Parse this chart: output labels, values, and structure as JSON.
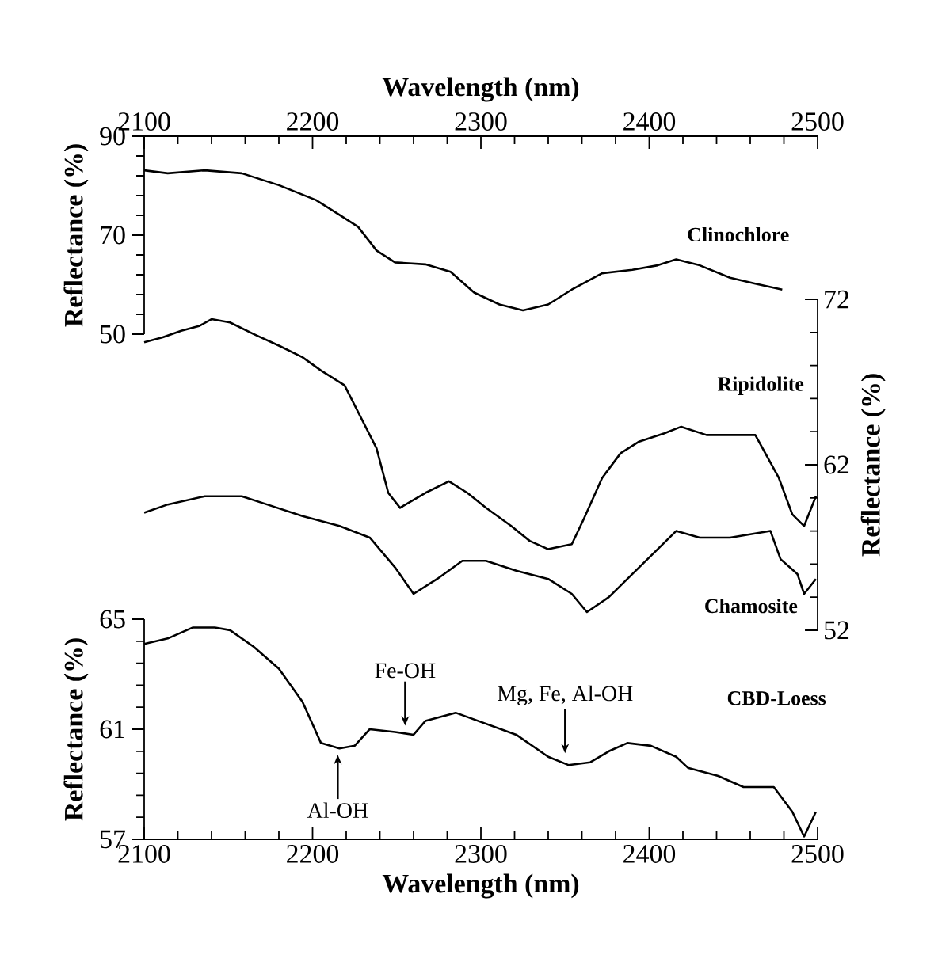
{
  "chart_data": [
    {
      "type": "line",
      "xlabel": "Wavelength (nm)",
      "xlim": [
        2100,
        2500
      ],
      "xticks": [
        2100,
        2200,
        2300,
        2400,
        2500
      ],
      "ylabel": "Reflectance (%)",
      "ylim": [
        50,
        90
      ],
      "yticks": [
        50,
        70,
        90
      ],
      "series": [
        {
          "name": "Clinochlore",
          "color": "#000000",
          "x": [
            2100,
            2114,
            2136,
            2158,
            2180,
            2202,
            2216,
            2227,
            2238,
            2249,
            2267,
            2282,
            2296,
            2311,
            2325,
            2340,
            2354,
            2372,
            2390,
            2405,
            2416,
            2430,
            2448,
            2463,
            2479
          ],
          "values": [
            83.1,
            82.5,
            83.1,
            82.5,
            80.1,
            77.1,
            74.1,
            71.7,
            66.9,
            64.5,
            64.1,
            62.6,
            58.4,
            56.0,
            54.8,
            56.0,
            59.0,
            62.3,
            63.0,
            63.9,
            65.1,
            63.9,
            61.4,
            60.2,
            59.0
          ]
        }
      ]
    },
    {
      "type": "line",
      "xlim": [
        2100,
        2500
      ],
      "tick_labels": "y",
      "y2label": "Reflectance (%)",
      "y2lim": [
        52,
        72
      ],
      "y2ticks": [
        52,
        62,
        72
      ],
      "series": [
        {
          "name": "Ripidolite",
          "color": "#000000",
          "axis": "y2",
          "x": [
            2100,
            2111,
            2122,
            2133,
            2140,
            2151,
            2165,
            2180,
            2194,
            2205,
            2219,
            2227,
            2238,
            2245,
            2252,
            2267,
            2281,
            2292,
            2303,
            2318,
            2329,
            2340,
            2354,
            2361,
            2372,
            2383,
            2394,
            2409,
            2419,
            2434,
            2448,
            2463,
            2470,
            2477,
            2485,
            2492,
            2499
          ],
          "values": [
            69.4,
            69.7,
            70.1,
            70.4,
            70.8,
            70.6,
            69.9,
            69.2,
            68.5,
            67.7,
            66.8,
            65.2,
            63.0,
            60.3,
            59.4,
            60.3,
            61.0,
            60.3,
            59.4,
            58.3,
            57.4,
            56.9,
            57.2,
            58.7,
            61.2,
            62.7,
            63.4,
            63.9,
            64.3,
            63.8,
            63.8,
            63.8,
            62.5,
            61.2,
            59.0,
            58.3,
            60.1
          ]
        },
        {
          "name": "Chamosite",
          "color": "#000000",
          "axis": "y2",
          "x": [
            2100,
            2114,
            2136,
            2158,
            2173,
            2194,
            2216,
            2234,
            2249,
            2260,
            2274,
            2289,
            2303,
            2321,
            2340,
            2354,
            2363,
            2376,
            2390,
            2405,
            2416,
            2430,
            2448,
            2472,
            2478,
            2488,
            2492,
            2499
          ],
          "values": [
            59.1,
            59.6,
            60.1,
            60.1,
            59.6,
            58.9,
            58.3,
            57.6,
            55.8,
            54.2,
            55.1,
            56.2,
            56.2,
            55.6,
            55.1,
            54.2,
            53.1,
            54.0,
            55.4,
            56.9,
            58.0,
            57.6,
            57.6,
            58.0,
            56.3,
            55.4,
            54.2,
            55.1
          ]
        }
      ]
    },
    {
      "type": "line",
      "xlabel": "Wavelength (nm)",
      "xlim": [
        2100,
        2500
      ],
      "xticks": [
        2100,
        2200,
        2300,
        2400,
        2500
      ],
      "ylabel": "Reflectance (%)",
      "ylim": [
        57,
        65
      ],
      "yticks": [
        57,
        61,
        65
      ],
      "annotations": [
        {
          "text": "Al-OH",
          "x": 2215,
          "y": 60.3
        },
        {
          "text": "Fe-OH",
          "x": 2255,
          "y": 60.9
        },
        {
          "text": "Mg, Fe, Al-OH",
          "x": 2350,
          "y": 59.9
        }
      ],
      "series": [
        {
          "name": "CBD-Loess",
          "color": "#000000",
          "x": [
            2100,
            2114,
            2129,
            2142,
            2151,
            2165,
            2180,
            2194,
            2205,
            2216,
            2225,
            2234,
            2249,
            2260,
            2267,
            2285,
            2303,
            2321,
            2340,
            2352,
            2365,
            2376,
            2387,
            2401,
            2416,
            2423,
            2441,
            2456,
            2474,
            2485,
            2492,
            2499
          ],
          "values": [
            64.1,
            64.3,
            64.7,
            64.7,
            64.6,
            64.0,
            63.2,
            62.0,
            60.5,
            60.3,
            60.4,
            61.0,
            60.9,
            60.8,
            61.3,
            61.6,
            61.2,
            60.8,
            60.0,
            59.7,
            59.8,
            60.2,
            60.5,
            60.4,
            60.0,
            59.6,
            59.3,
            58.9,
            58.9,
            58.0,
            57.1,
            58.0
          ]
        }
      ]
    }
  ]
}
